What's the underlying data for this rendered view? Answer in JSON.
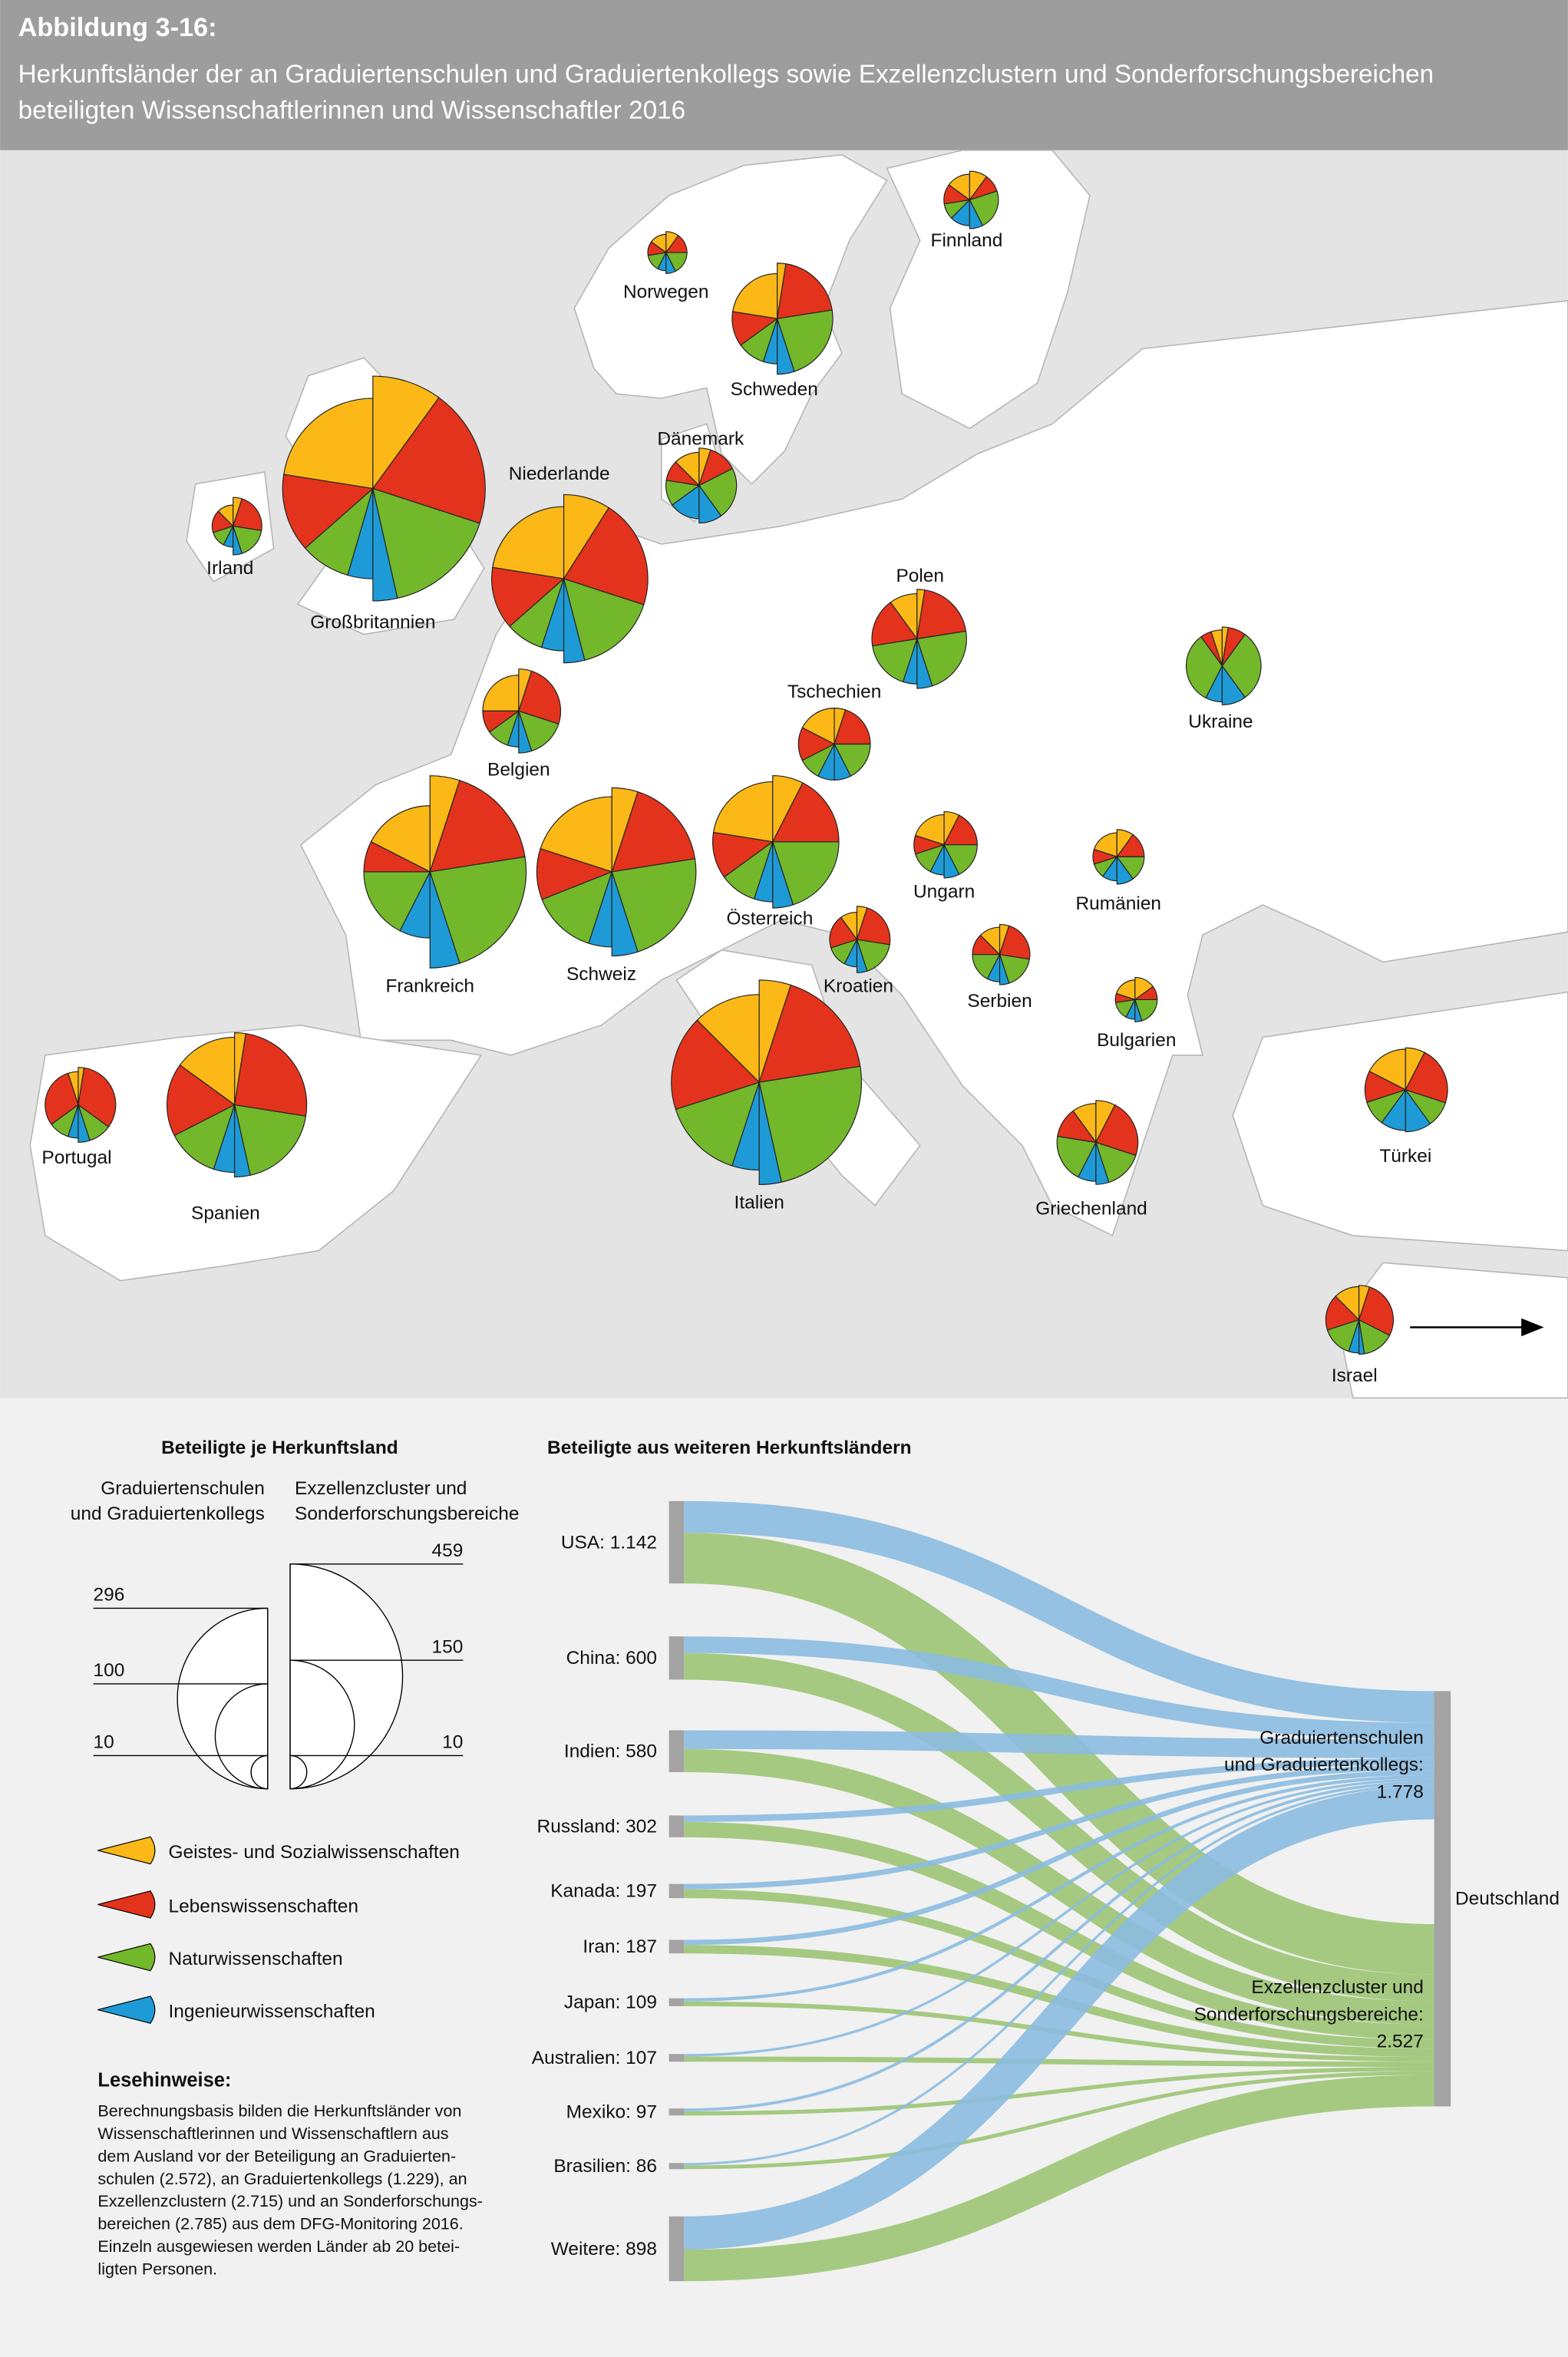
{
  "header": {
    "figure_label": "Abbildung 3-16:",
    "title_line1": "Herkunftsländer der an Graduiertenschulen und Graduiertenkollegs sowie Exzellenzclustern und Sonderforschungsbereichen",
    "title_line2": "beteiligten Wissenschaftlerinnen und Wissenschaftler 2016"
  },
  "colors": {
    "geistes": "#fbb817",
    "leben": "#e3331c",
    "natur": "#73b72b",
    "ingenieur": "#1e9bd7",
    "flow_gs": "#8bbbe0",
    "flow_ec": "#9cc474",
    "node": "#a3a3a3",
    "header_bg": "#9d9d9d"
  },
  "chart_data": [
    {
      "type": "pie",
      "title": "Herkunftsländer in Europa (halbierte Kreise: links Graduiertenschulen und Graduiertenkollegs, rechts Exzellenzcluster und Sonderforschungsbereiche)",
      "categories": [
        "Geistes- und Sozialwissenschaften",
        "Lebenswissenschaften",
        "Naturwissenschaften",
        "Ingenieurwissenschaften"
      ],
      "countries": [
        {
          "name": "Norwegen",
          "gs": 12,
          "ec": 16,
          "gs_shares": [
            30,
            25,
            30,
            15
          ],
          "ec_shares": [
            20,
            30,
            35,
            15
          ]
        },
        {
          "name": "Finnland",
          "gs": 24,
          "ec": 30,
          "gs_shares": [
            30,
            25,
            20,
            25
          ],
          "ec_shares": [
            20,
            20,
            45,
            15
          ]
        },
        {
          "name": "Schweden",
          "gs": 74,
          "ec": 112,
          "gs_shares": [
            45,
            25,
            20,
            10
          ],
          "ec_shares": [
            5,
            40,
            45,
            10
          ]
        },
        {
          "name": "Dänemark",
          "gs": 40,
          "ec": 51,
          "gs_shares": [
            25,
            20,
            25,
            30
          ],
          "ec_shares": [
            10,
            25,
            45,
            20
          ]
        },
        {
          "name": "Irland",
          "gs": 16,
          "ec": 30,
          "gs_shares": [
            25,
            35,
            25,
            15
          ],
          "ec_shares": [
            10,
            45,
            35,
            10
          ]
        },
        {
          "name": "Großbritannien",
          "gs": 296,
          "ec": 459,
          "gs_shares": [
            45,
            28,
            18,
            9
          ],
          "ec_shares": [
            20,
            40,
            33,
            7
          ]
        },
        {
          "name": "Niederlande",
          "gs": 189,
          "ec": 257,
          "gs_shares": [
            45,
            28,
            17,
            10
          ],
          "ec_shares": [
            18,
            42,
            32,
            8
          ]
        },
        {
          "name": "Belgien",
          "gs": 47,
          "ec": 64,
          "gs_shares": [
            50,
            20,
            20,
            10
          ],
          "ec_shares": [
            10,
            50,
            30,
            10
          ]
        },
        {
          "name": "Polen",
          "gs": 74,
          "ec": 89,
          "gs_shares": [
            20,
            35,
            35,
            10
          ],
          "ec_shares": [
            5,
            40,
            45,
            10
          ]
        },
        {
          "name": "Ukraine",
          "gs": 47,
          "ec": 55,
          "gs_shares": [
            10,
            10,
            65,
            15
          ],
          "ec_shares": [
            5,
            15,
            60,
            20
          ]
        },
        {
          "name": "Tschechien",
          "gs": 47,
          "ec": 47,
          "gs_shares": [
            35,
            30,
            20,
            15
          ],
          "ec_shares": [
            10,
            40,
            35,
            15
          ]
        },
        {
          "name": "Frankreich",
          "gs": 159,
          "ec": 336,
          "gs_shares": [
            35,
            15,
            35,
            15
          ],
          "ec_shares": [
            10,
            35,
            45,
            10
          ]
        },
        {
          "name": "Schweiz",
          "gs": 205,
          "ec": 257,
          "gs_shares": [
            40,
            22,
            28,
            10
          ],
          "ec_shares": [
            10,
            35,
            45,
            10
          ]
        },
        {
          "name": "Österreich",
          "gs": 131,
          "ec": 159,
          "gs_shares": [
            45,
            25,
            20,
            10
          ],
          "ec_shares": [
            15,
            35,
            40,
            10
          ]
        },
        {
          "name": "Ungarn",
          "gs": 33,
          "ec": 40,
          "gs_shares": [
            40,
            20,
            25,
            15
          ],
          "ec_shares": [
            15,
            35,
            35,
            15
          ]
        },
        {
          "name": "Rumänien",
          "gs": 21,
          "ec": 27,
          "gs_shares": [
            40,
            20,
            20,
            20
          ],
          "ec_shares": [
            20,
            30,
            30,
            20
          ]
        },
        {
          "name": "Kroatien",
          "gs": 27,
          "ec": 40,
          "gs_shares": [
            20,
            40,
            25,
            15
          ],
          "ec_shares": [
            10,
            45,
            35,
            10
          ]
        },
        {
          "name": "Serbien",
          "gs": 27,
          "ec": 33,
          "gs_shares": [
            25,
            25,
            35,
            15
          ],
          "ec_shares": [
            10,
            45,
            35,
            10
          ]
        },
        {
          "name": "Bulgarien",
          "gs": 14,
          "ec": 18,
          "gs_shares": [
            40,
            15,
            30,
            15
          ],
          "ec_shares": [
            30,
            20,
            40,
            10
          ]
        },
        {
          "name": "Portugal",
          "gs": 40,
          "ec": 51,
          "gs_shares": [
            10,
            60,
            20,
            10
          ],
          "ec_shares": [
            5,
            65,
            20,
            10
          ]
        },
        {
          "name": "Spanien",
          "gs": 166,
          "ec": 189,
          "gs_shares": [
            30,
            35,
            25,
            10
          ],
          "ec_shares": [
            5,
            50,
            38,
            7
          ]
        },
        {
          "name": "Italien",
          "gs": 280,
          "ec": 380,
          "gs_shares": [
            25,
            35,
            30,
            10
          ],
          "ec_shares": [
            10,
            35,
            48,
            7
          ]
        },
        {
          "name": "Griechenland",
          "gs": 55,
          "ec": 64,
          "gs_shares": [
            20,
            25,
            40,
            15
          ],
          "ec_shares": [
            15,
            45,
            30,
            10
          ]
        },
        {
          "name": "Türkei",
          "gs": 60,
          "ec": 64,
          "gs_shares": [
            35,
            25,
            20,
            20
          ],
          "ec_shares": [
            15,
            45,
            20,
            20
          ]
        },
        {
          "name": "Israel",
          "gs": 40,
          "ec": 43,
          "gs_shares": [
            25,
            35,
            30,
            10
          ],
          "ec_shares": [
            10,
            55,
            30,
            5
          ]
        }
      ]
    },
    {
      "type": "sankey",
      "title": "Beteiligte aus weiteren Herkunftsländern",
      "target": "Deutschland",
      "target_gs_label_line1": "Graduiertenschulen",
      "target_gs_label_line2": "und Graduiertenkollegs:",
      "target_gs_total": "1.778",
      "target_ec_label_line1": "Exzellenzcluster und",
      "target_ec_label_line2": "Sonderforschungsbereiche:",
      "target_ec_total": "2.527",
      "sources": [
        {
          "label": "USA: 1.142",
          "total": 1142,
          "gs": 440,
          "ec": 702
        },
        {
          "label": "China: 600",
          "total": 600,
          "gs": 230,
          "ec": 370
        },
        {
          "label": "Indien: 580",
          "total": 580,
          "gs": 260,
          "ec": 320
        },
        {
          "label": "Russland: 302",
          "total": 302,
          "gs": 90,
          "ec": 212
        },
        {
          "label": "Kanada: 197",
          "total": 197,
          "gs": 75,
          "ec": 122
        },
        {
          "label": "Iran: 187",
          "total": 187,
          "gs": 70,
          "ec": 117
        },
        {
          "label": "Japan: 109",
          "total": 109,
          "gs": 45,
          "ec": 64
        },
        {
          "label": "Australien: 107",
          "total": 107,
          "gs": 35,
          "ec": 72
        },
        {
          "label": "Mexiko: 97",
          "total": 97,
          "gs": 40,
          "ec": 57
        },
        {
          "label": "Brasilien: 86",
          "total": 86,
          "gs": 33,
          "ec": 53
        },
        {
          "label": "Weitere: 898",
          "total": 898,
          "gs": 460,
          "ec": 438
        }
      ]
    }
  ],
  "size_legend": {
    "title": "Beteiligte je Herkunftsland",
    "left_heading_line1": "Graduiertenschulen",
    "left_heading_line2": "und Graduiertenkollegs",
    "right_heading_line1": "Exzellenzcluster und",
    "right_heading_line2": "Sonderforschungsbereiche",
    "left_values": [
      296,
      100,
      10
    ],
    "left_labels": [
      "296",
      "100",
      "10"
    ],
    "right_values": [
      459,
      150,
      10
    ],
    "right_labels": [
      "459",
      "150",
      "10"
    ]
  },
  "color_legend": [
    {
      "label": "Geistes- und Sozialwissenschaften",
      "color_key": "geistes"
    },
    {
      "label": "Lebenswissenschaften",
      "color_key": "leben"
    },
    {
      "label": "Naturwissenschaften",
      "color_key": "natur"
    },
    {
      "label": "Ingenieurwissenschaften",
      "color_key": "ingenieur"
    }
  ],
  "notes": {
    "title": "Lesehinweise:",
    "lines": [
      "Berechnungsbasis bilden die Herkunftsländer von",
      "Wissenschaftlerinnen und Wissenschaftlern aus",
      "dem Ausland vor der Beteiligung an Graduierten-",
      "schulen (2.572), an Graduiertenkollegs (1.229), an",
      "Exzellenzclustern (2.715) und an Sonderforschungs-",
      "bereichen (2.785) aus dem DFG-Monitoring 2016.",
      "Einzeln ausgewiesen werden Länder ab 20 betei-",
      "ligten Personen."
    ]
  }
}
